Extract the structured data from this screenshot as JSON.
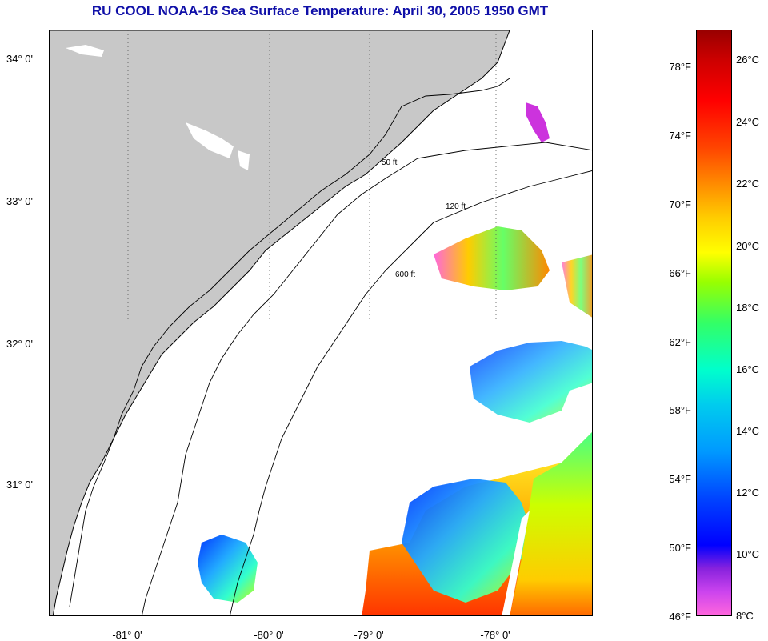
{
  "title": "RU COOL  NOAA-16  Sea Surface Temperature:  April 30, 2005 1950 GMT",
  "lat_labels": [
    "34° 0'",
    "33° 0'",
    "32° 0'",
    "31° 0'"
  ],
  "lon_labels": [
    "-81° 0'",
    "-80° 0'",
    "-79° 0'",
    "-78° 0'"
  ],
  "contour_labels": [
    "50 ft",
    "120 ft",
    "600 ft"
  ],
  "colorbar": {
    "fahrenheit": [
      "78°F",
      "74°F",
      "70°F",
      "66°F",
      "62°F",
      "58°F",
      "54°F",
      "50°F",
      "46°F"
    ],
    "celsius": [
      "26°C",
      "24°C",
      "22°C",
      "20°C",
      "18°C",
      "16°C",
      "14°C",
      "12°C",
      "10°C",
      "8°C"
    ]
  },
  "colors": {
    "title": "#1010a8",
    "land": "#c8c8c8",
    "grid": "#555555"
  }
}
